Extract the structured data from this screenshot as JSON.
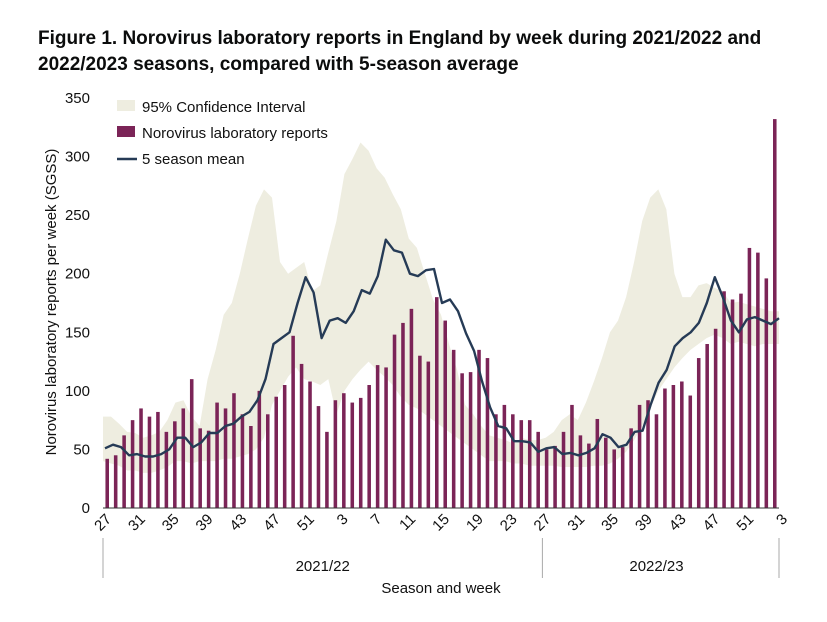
{
  "title": "Figure 1. Norovirus laboratory reports in England by week during 2021/2022 and 2022/2023 seasons, compared with 5-season average",
  "colors": {
    "bar": "#7b2457",
    "line": "#263b56",
    "ci": "#eeede0",
    "axis": "#333333"
  },
  "chart_data": {
    "type": "bar",
    "title": "Figure 1. Norovirus laboratory reports in England by week during 2021/2022 and 2022/2023 seasons, compared with 5-season average",
    "xlabel": "Season and week",
    "ylabel": "Norovirus laboratory reports per week (SGSS)",
    "ylim": [
      0,
      350
    ],
    "yticks": [
      0,
      50,
      100,
      150,
      200,
      250,
      300,
      350
    ],
    "week_labels": [
      "27",
      "31",
      "35",
      "39",
      "43",
      "47",
      "51",
      "3",
      "7",
      "11",
      "15",
      "19",
      "23",
      "27",
      "31",
      "35",
      "39",
      "43",
      "47",
      "51",
      "3"
    ],
    "season_groups": [
      {
        "label": "2021/22",
        "start": 0,
        "end": 52
      },
      {
        "label": "2022/23",
        "start": 52,
        "end": 79
      }
    ],
    "series": [
      {
        "name": "Norovirus laboratory reports",
        "kind": "bar",
        "values": [
          42,
          45,
          62,
          75,
          85,
          78,
          82,
          65,
          74,
          85,
          110,
          68,
          66,
          90,
          85,
          98,
          80,
          70,
          100,
          80,
          95,
          105,
          147,
          123,
          108,
          87,
          65,
          92,
          98,
          90,
          94,
          105,
          122,
          120,
          148,
          158,
          170,
          130,
          125,
          180,
          160,
          135,
          115,
          116,
          135,
          128,
          80,
          88,
          80,
          75,
          75,
          65,
          50,
          53,
          65,
          88,
          62,
          55,
          76,
          60,
          50,
          52,
          68,
          88,
          92,
          80,
          102,
          105,
          108,
          96,
          128,
          140,
          153,
          185,
          178,
          183,
          222,
          218,
          196,
          332
        ]
      },
      {
        "name": "5 season mean",
        "kind": "line",
        "values": [
          51,
          54,
          52,
          45,
          46,
          44,
          44,
          46,
          50,
          60,
          60,
          52,
          56,
          64,
          64,
          70,
          72,
          78,
          82,
          92,
          110,
          140,
          145,
          150,
          175,
          197,
          184,
          145,
          160,
          162,
          158,
          168,
          186,
          183,
          198,
          229,
          220,
          218,
          200,
          198,
          203,
          204,
          175,
          178,
          168,
          149,
          134,
          108,
          86,
          70,
          68,
          57,
          57,
          56,
          48,
          51,
          52,
          46,
          47,
          45,
          47,
          51,
          63,
          60,
          52,
          54,
          65,
          66,
          88,
          107,
          118,
          138,
          145,
          150,
          158,
          175,
          197,
          180,
          160,
          150,
          161,
          163,
          160,
          157,
          162
        ]
      },
      {
        "name": "95% Confidence Interval",
        "kind": "band",
        "upper": [
          78,
          78,
          72,
          65,
          64,
          60,
          62,
          65,
          75,
          90,
          92,
          78,
          70,
          110,
          135,
          165,
          175,
          200,
          230,
          258,
          272,
          265,
          210,
          200,
          205,
          210,
          185,
          190,
          218,
          245,
          285,
          298,
          312,
          305,
          290,
          282,
          268,
          255,
          230,
          222,
          200,
          178,
          165,
          140,
          118,
          88,
          80,
          70,
          62,
          60,
          58,
          55,
          60,
          58,
          58,
          60,
          65,
          75,
          80,
          75,
          90,
          108,
          128,
          150,
          160,
          180,
          210,
          245,
          265,
          272,
          255,
          200,
          180,
          180,
          190,
          192,
          188,
          185,
          175,
          176,
          174,
          172,
          170,
          168,
          168
        ],
        "lower": [
          40,
          38,
          36,
          32,
          32,
          30,
          30,
          32,
          35,
          40,
          40,
          38,
          40,
          40,
          40,
          42,
          42,
          44,
          46,
          50,
          60,
          88,
          100,
          112,
          120,
          110,
          108,
          105,
          110,
          80,
          100,
          110,
          118,
          125,
          118,
          112,
          105,
          95,
          88,
          85,
          80,
          75,
          70,
          65,
          60,
          55,
          50,
          45,
          40,
          40,
          40,
          38,
          38,
          36,
          36,
          36,
          36,
          35,
          35,
          35,
          35,
          36,
          36,
          38,
          42,
          48,
          58,
          70,
          85,
          100,
          110,
          120,
          128,
          135,
          140,
          145,
          148,
          145,
          140,
          142,
          140,
          138,
          140,
          140,
          140
        ]
      }
    ],
    "legend": [
      "95% Confidence Interval",
      "Norovirus laboratory reports",
      "5 season mean"
    ],
    "legend_position": "top-left"
  }
}
